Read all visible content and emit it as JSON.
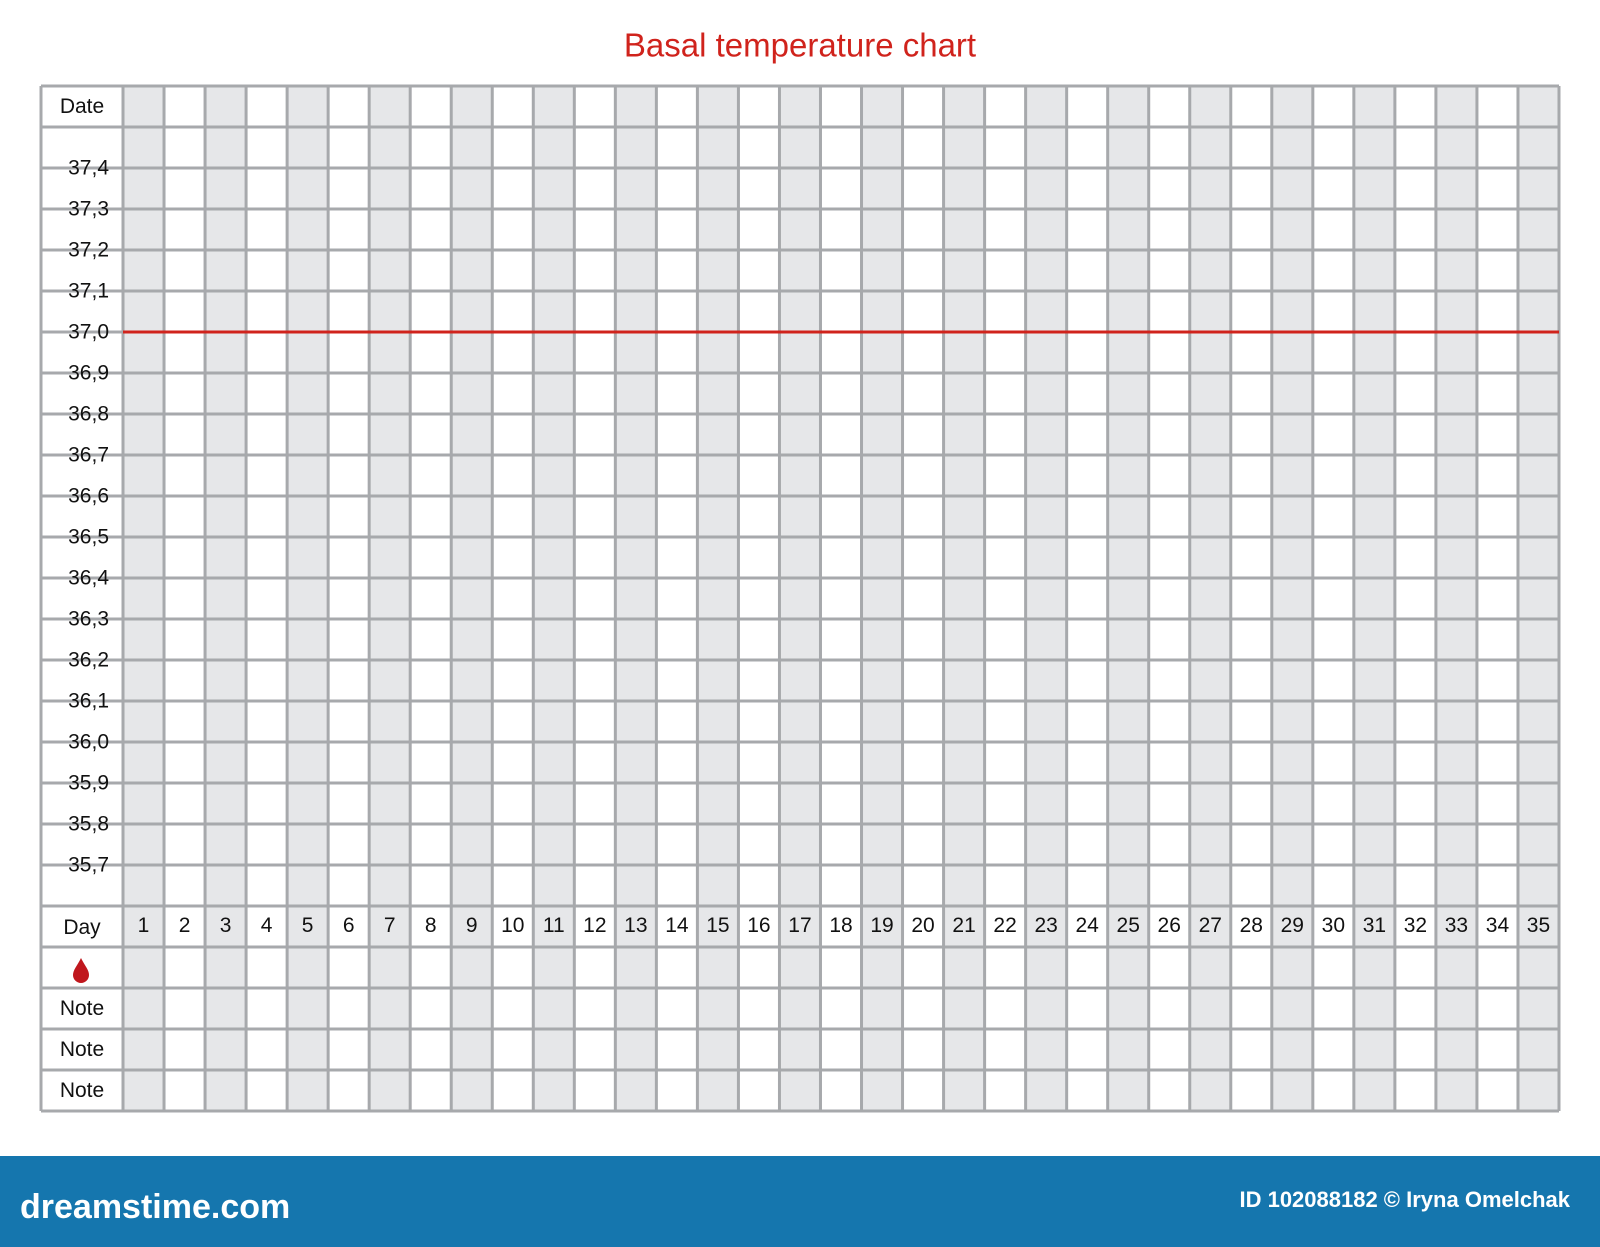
{
  "header": {
    "title": "Basal temperature chart"
  },
  "chart_data": {
    "type": "grid-form",
    "title": "Basal temperature chart",
    "row_labels": {
      "date": "Date",
      "day": "Day",
      "notes": [
        "Note",
        "Note",
        "Note"
      ]
    },
    "days": [
      1,
      2,
      3,
      4,
      5,
      6,
      7,
      8,
      9,
      10,
      11,
      12,
      13,
      14,
      15,
      16,
      17,
      18,
      19,
      20,
      21,
      22,
      23,
      24,
      25,
      26,
      27,
      28,
      29,
      30,
      31,
      32,
      33,
      34,
      35
    ],
    "ylim": [
      35.6,
      37.5
    ],
    "yticks": [
      {
        "value": 37.4,
        "label": "37,4"
      },
      {
        "value": 37.3,
        "label": "37,3"
      },
      {
        "value": 37.2,
        "label": "37,2"
      },
      {
        "value": 37.1,
        "label": "37,1"
      },
      {
        "value": 37.0,
        "label": "37,0"
      },
      {
        "value": 36.9,
        "label": "36,9"
      },
      {
        "value": 36.8,
        "label": "36,8"
      },
      {
        "value": 36.7,
        "label": "36,7"
      },
      {
        "value": 36.6,
        "label": "36,6"
      },
      {
        "value": 36.5,
        "label": "36,5"
      },
      {
        "value": 36.4,
        "label": "36,4"
      },
      {
        "value": 36.3,
        "label": "36,3"
      },
      {
        "value": 36.2,
        "label": "36,2"
      },
      {
        "value": 36.1,
        "label": "36,1"
      },
      {
        "value": 36.0,
        "label": "36,0"
      },
      {
        "value": 35.9,
        "label": "35,9"
      },
      {
        "value": 35.8,
        "label": "35,8"
      },
      {
        "value": 35.7,
        "label": "35,7"
      }
    ],
    "reference_line": 37.0,
    "reference_color": "#d0231c",
    "grid_color": "#a7a9ac",
    "shade_color": "#e6e7e9"
  },
  "footer": {
    "brand": "dreamstime.com",
    "credit": "ID 102088182 © Iryna Omelchak"
  }
}
